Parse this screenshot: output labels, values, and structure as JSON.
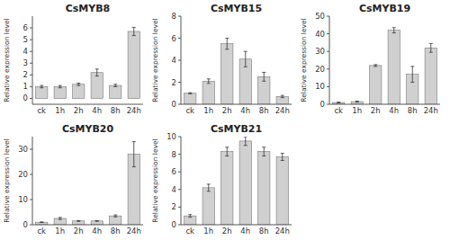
{
  "chart_data": [
    {
      "type": "bar",
      "title": "CsMYB8",
      "categories": [
        "ck",
        "1h",
        "2h",
        "4h",
        "8h",
        "24h"
      ],
      "values": [
        1.0,
        1.0,
        1.2,
        2.2,
        1.1,
        5.7
      ],
      "errors": [
        0.1,
        0.1,
        0.1,
        0.3,
        0.1,
        0.35
      ],
      "ylim": [
        -0.5,
        7
      ],
      "yticks": [
        0,
        1,
        2,
        3,
        4,
        5,
        6
      ],
      "ylabel": "Relative expression level",
      "color": "#d0d0d0"
    },
    {
      "type": "bar",
      "title": "CsMYB15",
      "categories": [
        "ck",
        "1h",
        "2h",
        "4h",
        "8h",
        "24h"
      ],
      "values": [
        1.0,
        2.1,
        5.5,
        4.1,
        2.5,
        0.7
      ],
      "errors": [
        0.05,
        0.2,
        0.5,
        0.7,
        0.4,
        0.1
      ],
      "ylim": [
        0,
        8
      ],
      "yticks": [
        0,
        2,
        4,
        6,
        8
      ],
      "ylabel": "Relative expression level",
      "color": "#d0d0d0"
    },
    {
      "type": "bar",
      "title": "CsMYB19",
      "categories": [
        "ck",
        "1h",
        "2h",
        "4h",
        "8h",
        "24h"
      ],
      "values": [
        1.0,
        1.5,
        22.0,
        42.0,
        17.0,
        32.0
      ],
      "errors": [
        0.2,
        0.3,
        0.5,
        1.5,
        4.5,
        2.5
      ],
      "ylim": [
        0,
        50
      ],
      "yticks": [
        0,
        10,
        20,
        30,
        40,
        50
      ],
      "ylabel": "Relative expression level",
      "color": "#d0d0d0"
    },
    {
      "type": "bar",
      "title": "CsMYB20",
      "categories": [
        "ck",
        "1h",
        "2h",
        "4h",
        "8h",
        "24h"
      ],
      "values": [
        1.0,
        2.5,
        1.5,
        1.5,
        3.5,
        28.0
      ],
      "errors": [
        0.1,
        0.4,
        0.15,
        0.15,
        0.4,
        5.0
      ],
      "ylim": [
        0,
        35
      ],
      "yticks": [
        0,
        10,
        20,
        30
      ],
      "ylabel": "Relative expression level",
      "color": "#d0d0d0"
    },
    {
      "type": "bar",
      "title": "CsMYB21",
      "categories": [
        "ck",
        "1h",
        "2h",
        "4h",
        "8h",
        "24h"
      ],
      "values": [
        1.0,
        4.2,
        8.3,
        9.5,
        8.3,
        7.7
      ],
      "errors": [
        0.15,
        0.4,
        0.5,
        0.5,
        0.5,
        0.4
      ],
      "ylim": [
        0,
        10
      ],
      "yticks": [
        0,
        2,
        4,
        6,
        8,
        10
      ],
      "ylabel": "Relative expression level",
      "color": "#d0d0d0"
    }
  ]
}
